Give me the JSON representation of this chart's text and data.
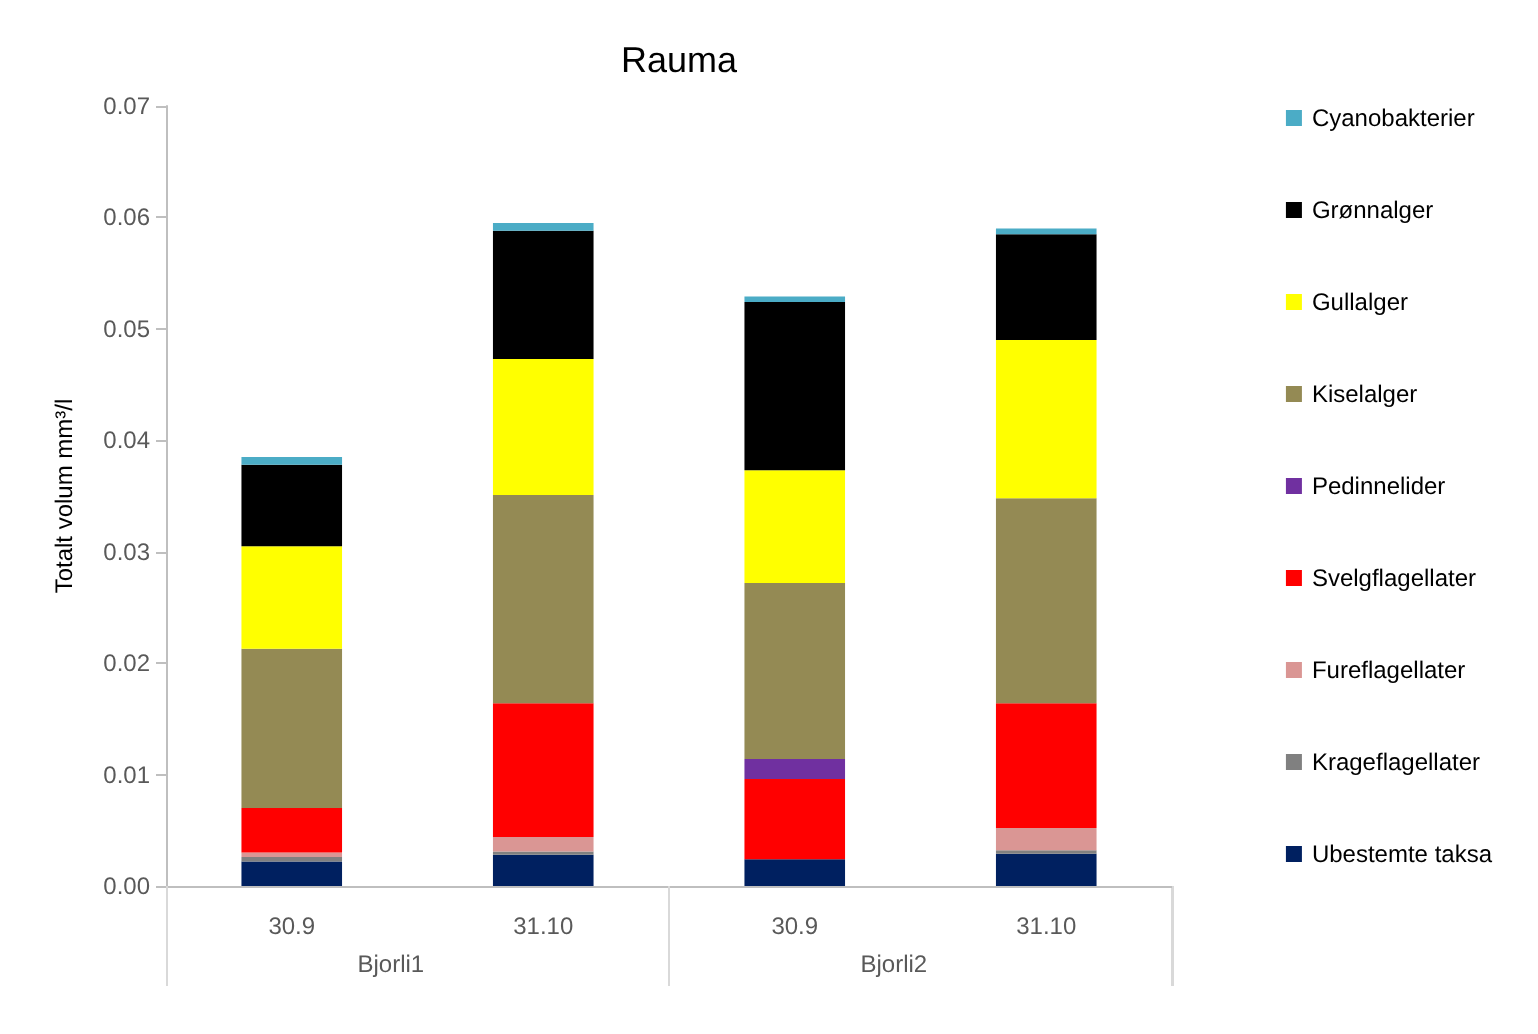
{
  "chart_data": {
    "type": "bar",
    "title": "Rauma",
    "ylabel": "Totalt volum mm³/l",
    "stacked": true,
    "categories": [
      "30.9",
      "31.10",
      "30.9",
      "31.10"
    ],
    "annotations": [
      "Bjorli1",
      "Bjorli2"
    ],
    "series": [
      {
        "name": "Ubestemte taksa",
        "color": "#002060",
        "values": [
          0.0022,
          0.0028,
          0.0024,
          0.0029
        ]
      },
      {
        "name": "Krageflagellater",
        "color": "#808080",
        "values": [
          0.0004,
          0.0003,
          0,
          0.0003
        ]
      },
      {
        "name": "Fureflagellater",
        "color": "#da9694",
        "values": [
          0.0004,
          0.0013,
          0,
          0.002
        ]
      },
      {
        "name": "Svelgflagellater",
        "color": "#ff0000",
        "values": [
          0.004,
          0.012,
          0.0072,
          0.0112
        ]
      },
      {
        "name": "Pedinnelider",
        "color": "#7030a0",
        "values": [
          0,
          0,
          0.0018,
          0
        ]
      },
      {
        "name": "Kiselalger",
        "color": "#948a54",
        "values": [
          0.0143,
          0.0187,
          0.0158,
          0.0184
        ]
      },
      {
        "name": "Gullalger",
        "color": "#ffff00",
        "values": [
          0.0092,
          0.0122,
          0.0101,
          0.0142
        ]
      },
      {
        "name": "Grønnalger",
        "color": "#000000",
        "values": [
          0.0073,
          0.0115,
          0.0151,
          0.0095
        ]
      },
      {
        "name": "Cyanobakterier",
        "color": "#4bacc6",
        "values": [
          0.0007,
          0.0007,
          0.0005,
          0.0005
        ]
      }
    ],
    "ylim": [
      0,
      0.07
    ],
    "yticks": [
      {
        "value": 0,
        "label": "0.00"
      },
      {
        "value": 0.01,
        "label": "0.01"
      },
      {
        "value": 0.02,
        "label": "0.02"
      },
      {
        "value": 0.03,
        "label": "0.03"
      },
      {
        "value": 0.04,
        "label": "0.04"
      },
      {
        "value": 0.05,
        "label": "0.05"
      },
      {
        "value": 0.06,
        "label": "0.06"
      },
      {
        "value": 0.07,
        "label": "0.07"
      }
    ],
    "grid": false,
    "legend": "right"
  }
}
